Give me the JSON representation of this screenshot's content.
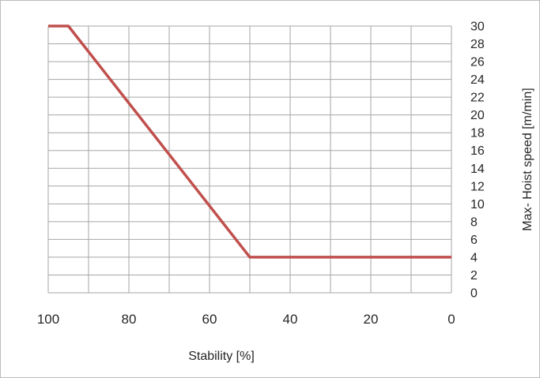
{
  "chart_data": {
    "type": "line",
    "title": "",
    "xlabel": "Stability [%]",
    "ylabel": "Max- Hoist speed [m/min]",
    "xlim": [
      100,
      0
    ],
    "ylim": [
      0,
      30
    ],
    "x_reversed": true,
    "y_axis_side": "right",
    "grid": true,
    "legend": "none",
    "line_color": "#C0504D",
    "grid_color": "#a6a6a6",
    "x_ticks": [
      "100",
      "80",
      "60",
      "40",
      "20",
      "0"
    ],
    "y_ticks": [
      "0",
      "2",
      "4",
      "6",
      "8",
      "10",
      "12",
      "14",
      "16",
      "18",
      "20",
      "22",
      "24",
      "26",
      "28",
      "30"
    ],
    "series": [
      {
        "x": [
          100,
          95,
          50,
          0
        ],
        "y": [
          30,
          30,
          4,
          4
        ]
      }
    ]
  }
}
